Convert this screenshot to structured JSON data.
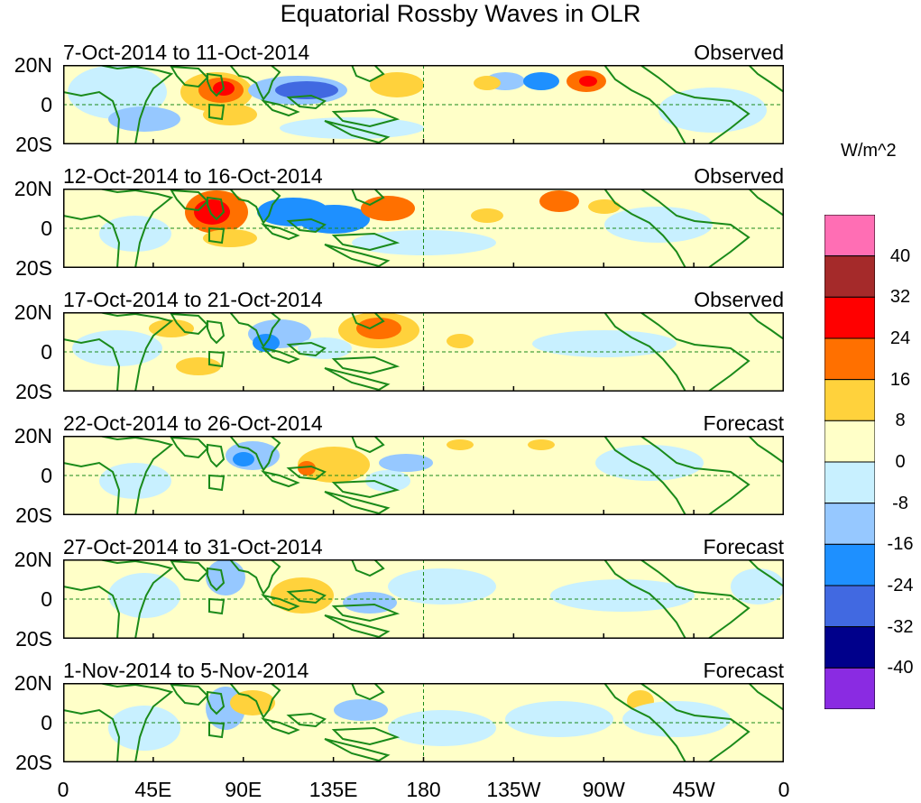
{
  "title": "Equatorial Rossby Waves in OLR",
  "panels": [
    {
      "dates": "7-Oct-2014 to 11-Oct-2014",
      "kind": "Observed"
    },
    {
      "dates": "12-Oct-2014 to 16-Oct-2014",
      "kind": "Observed"
    },
    {
      "dates": "17-Oct-2014 to 21-Oct-2014",
      "kind": "Observed"
    },
    {
      "dates": "22-Oct-2014 to 26-Oct-2014",
      "kind": "Forecast"
    },
    {
      "dates": "27-Oct-2014 to 31-Oct-2014",
      "kind": "Forecast"
    },
    {
      "dates": "1-Nov-2014 to 5-Nov-2014",
      "kind": "Forecast"
    }
  ],
  "lat_labels": [
    "20N",
    "0",
    "20S"
  ],
  "lon_labels": [
    "0",
    "45E",
    "90E",
    "135E",
    "180",
    "135W",
    "90W",
    "45W",
    "0"
  ],
  "units": "W/m^2",
  "colorbar": {
    "labels": [
      "40",
      "32",
      "24",
      "16",
      "8",
      "0",
      "-8",
      "-16",
      "-24",
      "-32",
      "-40"
    ],
    "colors": [
      "#ff6eb4",
      "#a52a2a",
      "#ff0000",
      "#ff7000",
      "#ffd23c",
      "#ffffc8",
      "#c8f0ff",
      "#96c8ff",
      "#1e90ff",
      "#4169e1",
      "#00008b",
      "#8a2be2"
    ]
  }
}
